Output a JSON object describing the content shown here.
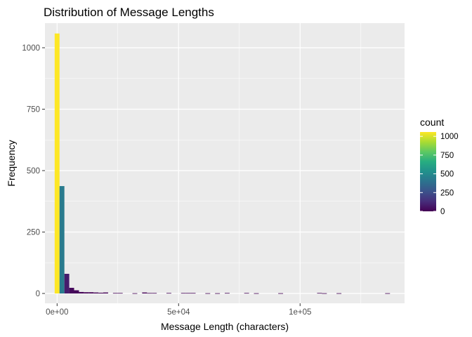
{
  "chart_data": {
    "type": "bar",
    "title": "Distribution of Message Lengths",
    "xlabel": "Message Length (characters)",
    "ylabel": "Frequency",
    "xlim": [
      -5000,
      143000
    ],
    "ylim": [
      -40,
      1100
    ],
    "x_ticks": [
      {
        "value": 0,
        "label": "0e+00"
      },
      {
        "value": 50000,
        "label": "5e+04"
      },
      {
        "value": 100000,
        "label": "1e+05"
      }
    ],
    "y_ticks": [
      {
        "value": 0,
        "label": "0"
      },
      {
        "value": 250,
        "label": "250"
      },
      {
        "value": 500,
        "label": "500"
      },
      {
        "value": 750,
        "label": "750"
      },
      {
        "value": 1000,
        "label": "1000"
      }
    ],
    "bin_width": 2000,
    "bins": [
      {
        "x": 0,
        "count": 1058
      },
      {
        "x": 2000,
        "count": 437
      },
      {
        "x": 4000,
        "count": 80
      },
      {
        "x": 6000,
        "count": 23
      },
      {
        "x": 8000,
        "count": 13
      },
      {
        "x": 10000,
        "count": 6
      },
      {
        "x": 12000,
        "count": 5
      },
      {
        "x": 14000,
        "count": 5
      },
      {
        "x": 16000,
        "count": 4
      },
      {
        "x": 18000,
        "count": 3
      },
      {
        "x": 20000,
        "count": 4
      },
      {
        "x": 24000,
        "count": 2
      },
      {
        "x": 26000,
        "count": 2
      },
      {
        "x": 32000,
        "count": 1
      },
      {
        "x": 36000,
        "count": 4
      },
      {
        "x": 38000,
        "count": 2
      },
      {
        "x": 40000,
        "count": 2
      },
      {
        "x": 46000,
        "count": 2
      },
      {
        "x": 52000,
        "count": 2
      },
      {
        "x": 54000,
        "count": 2
      },
      {
        "x": 56000,
        "count": 2
      },
      {
        "x": 62000,
        "count": 1
      },
      {
        "x": 66000,
        "count": 1
      },
      {
        "x": 70000,
        "count": 2
      },
      {
        "x": 78000,
        "count": 2
      },
      {
        "x": 82000,
        "count": 1
      },
      {
        "x": 92000,
        "count": 1
      },
      {
        "x": 108000,
        "count": 2
      },
      {
        "x": 110000,
        "count": 1
      },
      {
        "x": 116000,
        "count": 1
      },
      {
        "x": 136000,
        "count": 1
      }
    ],
    "legend": {
      "title": "count",
      "placement": "right",
      "range": [
        0,
        1058
      ],
      "ticks": [
        {
          "value": 0,
          "label": "0"
        },
        {
          "value": 250,
          "label": "250"
        },
        {
          "value": 500,
          "label": "500"
        },
        {
          "value": 750,
          "label": "750"
        },
        {
          "value": 1000,
          "label": "1000"
        }
      ],
      "colors": [
        "#440154",
        "#472D7B",
        "#3B528B",
        "#2C728E",
        "#21908C",
        "#27AD81",
        "#5DC863",
        "#AADC32",
        "#FDE725"
      ]
    },
    "colors": {
      "panel_background": "#EBEBEB",
      "grid": "#FFFFFF",
      "tick_text": "#4D4D4D"
    },
    "grid": true
  }
}
